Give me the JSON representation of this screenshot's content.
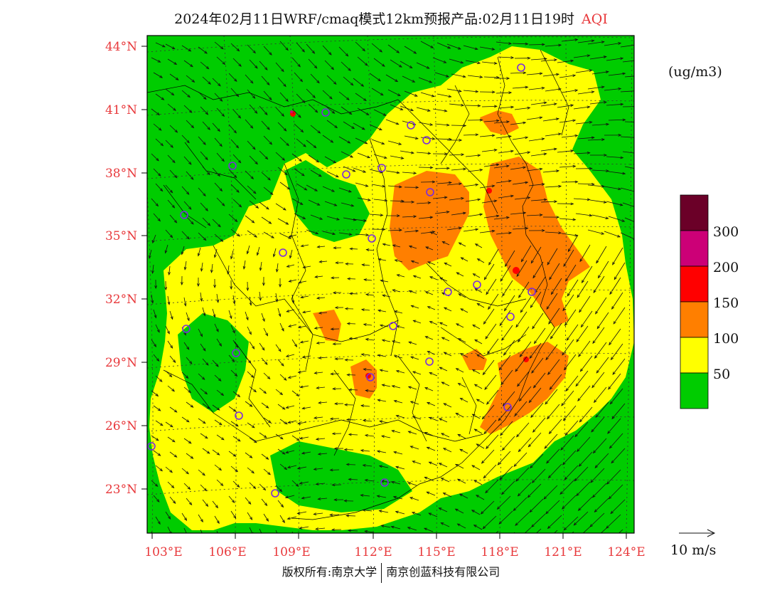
{
  "title": {
    "main": "2024年02月11日WRF/cmaq模式12km预报产品:02月11日19时",
    "product": "AQI"
  },
  "units": "(ug/m3)",
  "lat_labels": [
    "44°N",
    "41°N",
    "38°N",
    "35°N",
    "32°N",
    "29°N",
    "26°N",
    "23°N"
  ],
  "lon_labels": [
    "103°E",
    "106°E",
    "109°E",
    "112°E",
    "115°E",
    "118°E",
    "121°E",
    "124°E"
  ],
  "legend": {
    "colors": [
      "#6b0028",
      "#cc0077",
      "#ff0000",
      "#ff7f00",
      "#ffff00",
      "#00cc00"
    ],
    "labels": [
      "300",
      "200",
      "150",
      "100",
      "50"
    ]
  },
  "vector_reference": "10 m/s",
  "copyright": {
    "left": "版权所有:南京大学",
    "right": "南京创蓝科技有限公司"
  },
  "colors": {
    "green": "#00cc00",
    "yellow": "#ffff00",
    "orange": "#ff7f00",
    "red": "#ff0000",
    "magenta": "#cc0077",
    "label_red": "#e8383b",
    "city_marker": "#7a2be0"
  }
}
